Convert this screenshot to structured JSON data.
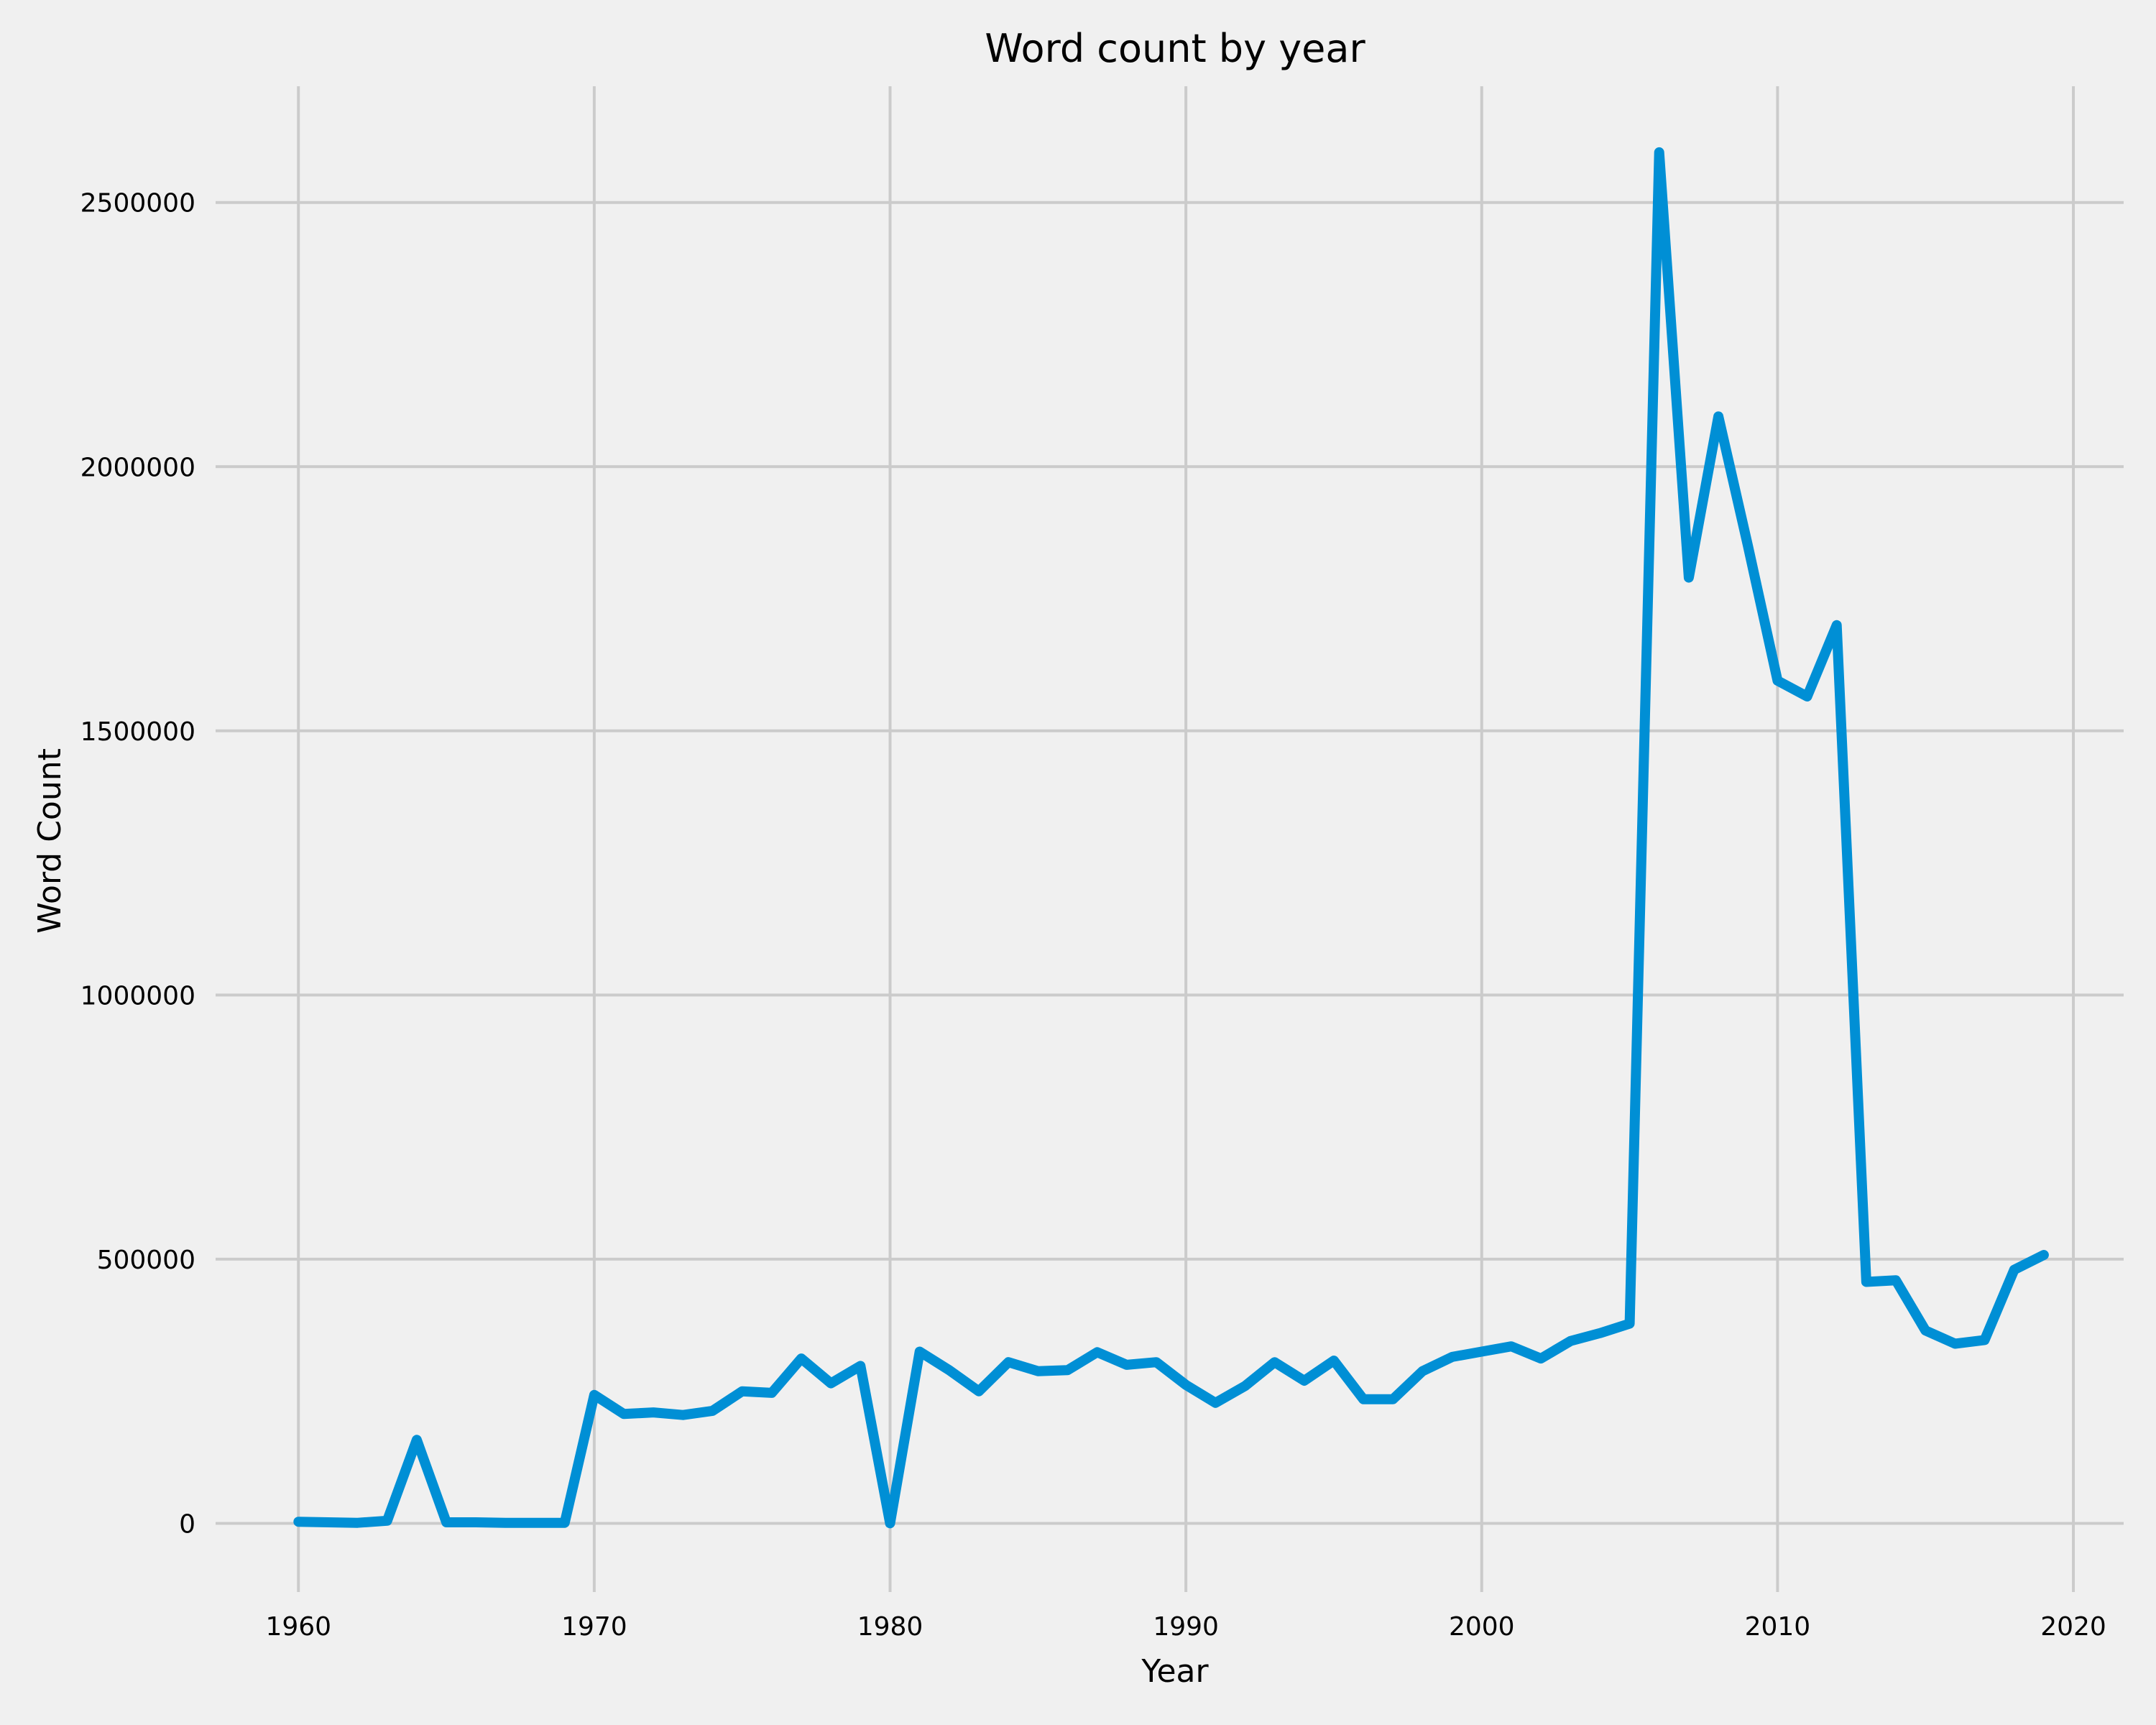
{
  "chart_data": {
    "type": "line",
    "title": "Word count by year",
    "xlabel": "Year",
    "ylabel": "Word Count",
    "xlim": [
      1957.2,
      2021.7
    ],
    "ylim": [
      -130000,
      2720000
    ],
    "xticks": [
      1960,
      1970,
      1980,
      1990,
      2000,
      2010,
      2020
    ],
    "yticks": [
      0,
      500000,
      1000000,
      1500000,
      2000000,
      2500000
    ],
    "grid": true,
    "legend": "none",
    "series": [
      {
        "color": "#008fd5",
        "x": [
          1960,
          1961,
          1962,
          1963,
          1964,
          1965,
          1966,
          1967,
          1968,
          1969,
          1970,
          1971,
          1972,
          1973,
          1974,
          1975,
          1976,
          1977,
          1978,
          1979,
          1980,
          1981,
          1982,
          1983,
          1984,
          1985,
          1986,
          1987,
          1988,
          1989,
          1990,
          1991,
          1992,
          1993,
          1994,
          1995,
          1996,
          1997,
          1998,
          1999,
          2000,
          2001,
          2002,
          2003,
          2004,
          2005,
          2006,
          2007,
          2008,
          2009,
          2010,
          2011,
          2012,
          2013,
          2014,
          2015,
          2016,
          2017,
          2018,
          2019
        ],
        "y": [
          3000,
          2000,
          1000,
          5000,
          158000,
          2000,
          2000,
          1000,
          1000,
          1000,
          243000,
          207000,
          210000,
          205000,
          213000,
          250000,
          247000,
          312000,
          265000,
          298000,
          0,
          325000,
          290000,
          250000,
          305000,
          288000,
          290000,
          324000,
          300000,
          305000,
          262000,
          228000,
          260000,
          305000,
          270000,
          308000,
          235000,
          235000,
          288000,
          315000,
          325000,
          335000,
          312000,
          345000,
          360000,
          378000,
          2595000,
          1790000,
          2095000,
          1850000,
          1595000,
          1565000,
          1700000,
          457000,
          460000,
          365000,
          340000,
          347000,
          480000,
          508000
        ]
      }
    ]
  }
}
